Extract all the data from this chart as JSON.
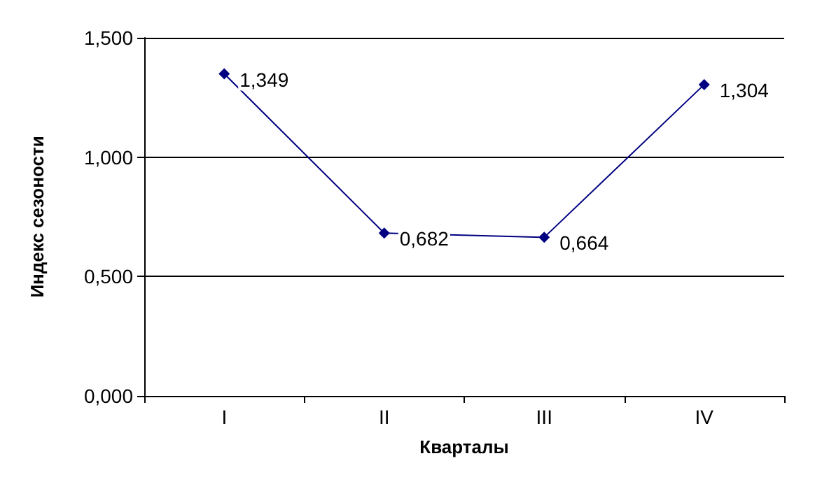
{
  "chart_data": {
    "type": "line",
    "xlabel": "Кварталы",
    "ylabel": "Индекс сезоности",
    "categories": [
      "I",
      "II",
      "III",
      "IV"
    ],
    "series": [
      {
        "color": "#000080",
        "values": [
          1.349,
          0.682,
          0.664,
          1.304
        ],
        "value_labels": [
          "1,349",
          "0,682",
          "0,664",
          "1,304"
        ]
      }
    ],
    "ylim": [
      0,
      1.5
    ],
    "yticks": [
      {
        "value": 0,
        "label": "0,000"
      },
      {
        "value": 0.5,
        "label": "0,500"
      },
      {
        "value": 1,
        "label": "1,000"
      },
      {
        "value": 1.5,
        "label": "1,500"
      }
    ],
    "grid": "y",
    "marker": "diamond",
    "line_style": "solid"
  }
}
